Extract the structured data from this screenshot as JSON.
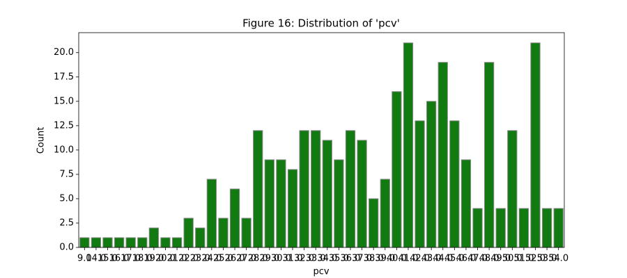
{
  "chart_data": {
    "type": "bar",
    "title": "Figure 16: Distribution of 'pcv'",
    "xlabel": "pcv",
    "ylabel": "Count",
    "categories": [
      "9.0",
      "14.0",
      "15.0",
      "16.0",
      "17.0",
      "18.0",
      "19.0",
      "20.0",
      "21.0",
      "22.0",
      "23.0",
      "24.0",
      "25.0",
      "26.0",
      "27.0",
      "28.0",
      "29.0",
      "30.0",
      "31.0",
      "32.0",
      "33.0",
      "34.0",
      "35.0",
      "36.0",
      "37.0",
      "38.0",
      "39.0",
      "40.0",
      "41.0",
      "42.0",
      "43.0",
      "44.0",
      "45.0",
      "46.0",
      "47.0",
      "48.0",
      "49.0",
      "50.0",
      "51.0",
      "52.0",
      "53.0",
      "54.0"
    ],
    "values": [
      1,
      1,
      1,
      1,
      1,
      1,
      2,
      1,
      1,
      3,
      2,
      7,
      3,
      6,
      3,
      12,
      9,
      9,
      8,
      12,
      12,
      11,
      9,
      12,
      11,
      5,
      7,
      16,
      21,
      13,
      15,
      19,
      13,
      9,
      4,
      19,
      4,
      12,
      4,
      21,
      4,
      4
    ],
    "color": "#117a11",
    "ylim": [
      0,
      22.05
    ],
    "yticks": [
      {
        "value": 0,
        "label": "0.0"
      },
      {
        "value": 2.5,
        "label": "2.5"
      },
      {
        "value": 5,
        "label": "5.0"
      },
      {
        "value": 7.5,
        "label": "7.5"
      },
      {
        "value": 10,
        "label": "10.0"
      },
      {
        "value": 12.5,
        "label": "12.5"
      },
      {
        "value": 15,
        "label": "15.0"
      },
      {
        "value": 17.5,
        "label": "17.5"
      },
      {
        "value": 20,
        "label": "20.0"
      }
    ]
  }
}
